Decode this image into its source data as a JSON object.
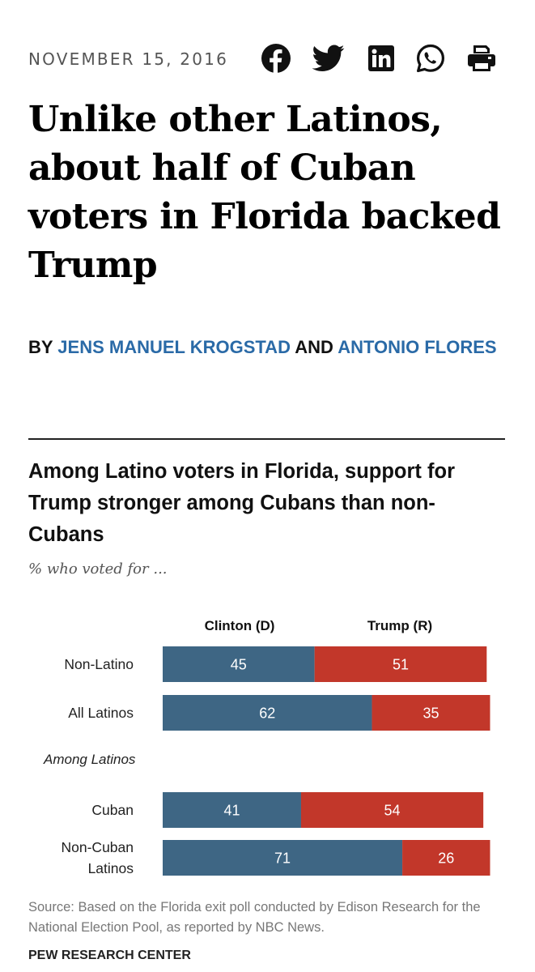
{
  "article": {
    "date": "NOVEMBER 15, 2016",
    "title": "Unlike other Latinos, about half of Cuban voters in Florida backed Trump",
    "byline": {
      "prefix": "BY",
      "author1": "JENS MANUEL KROGSTAD",
      "joiner": "AND",
      "author2": "ANTONIO FLORES"
    }
  },
  "share_icons": [
    "facebook-icon",
    "twitter-icon",
    "linkedin-icon",
    "whatsapp-icon",
    "print-icon"
  ],
  "chart_data": {
    "type": "bar",
    "orientation": "horizontal-stacked",
    "title": "Among Latino voters in Florida, support for Trump stronger among Cubans than non-Cubans",
    "subtitle": "% who voted for ...",
    "series": [
      {
        "name": "Clinton (D)",
        "color": "#3e6684",
        "values": [
          45,
          62,
          41,
          71
        ]
      },
      {
        "name": "Trump (R)",
        "color": "#c2372a",
        "values": [
          51,
          35,
          54,
          26
        ]
      }
    ],
    "categories": [
      "Non-Latino",
      "All Latinos",
      "Cuban",
      "Non-Cuban Latinos"
    ],
    "category_lines": [
      [
        "Non-Latino"
      ],
      [
        "All Latinos"
      ],
      [
        "Cuban"
      ],
      [
        "Non-Cuban",
        "Latinos"
      ]
    ],
    "group_label": "Among Latinos",
    "xlim": [
      0,
      100
    ],
    "grid": false,
    "legend": "top",
    "source": "Source: Based on the Florida exit poll conducted by Edison Research for the National Election Pool, as reported by NBC News.",
    "organization": "PEW RESEARCH CENTER"
  }
}
